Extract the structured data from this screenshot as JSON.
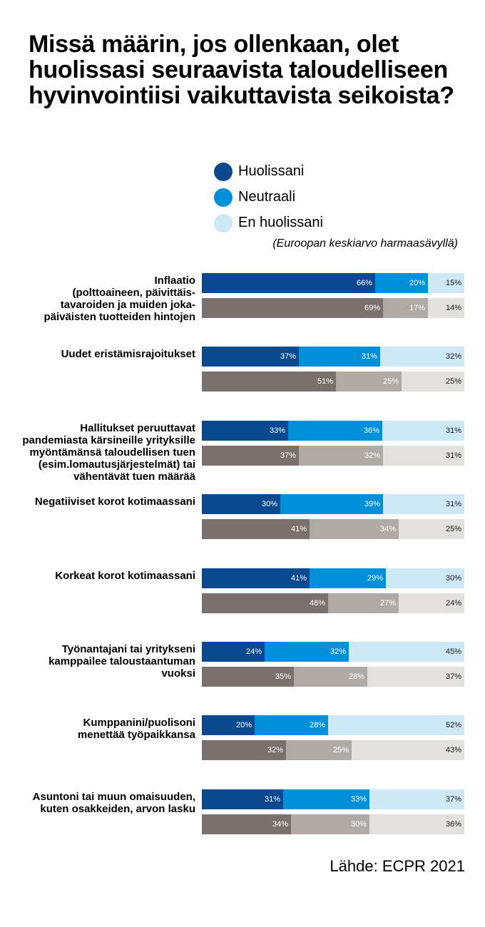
{
  "title": "Missä määrin, jos ollenkaan, olet huolissasi seuraavista taloudelliseen hyvinvointiisi vaikuttavista seikoista?",
  "legend": {
    "items": [
      {
        "label": "Huolissani",
        "color": "#08498f"
      },
      {
        "label": "Neutraali",
        "color": "#0090d9"
      },
      {
        "label": "En huolissani",
        "color": "#cfe8f8"
      }
    ],
    "note": "(Euroopan keskiarvo harmaasävyllä)"
  },
  "source": "Lähde: ECPR 2021",
  "chart_data": {
    "type": "bar",
    "orientation": "horizontal",
    "stacked": true,
    "title": "Missä määrin, jos ollenkaan, olet huolissasi seuraavista taloudelliseen hyvinvointiisi vaikuttavista seikoista?",
    "segments": [
      "Huolissani",
      "Neutraali",
      "En huolissani"
    ],
    "colors": {
      "country": [
        "#08498f",
        "#0090d9",
        "#cfe8f8"
      ],
      "europe": [
        "#7a716e",
        "#b0aaa6",
        "#e3e1de"
      ]
    },
    "segment_label_colors": {
      "country": [
        "#ffffff",
        "#ffffff",
        "#1a1a1a"
      ],
      "europe": [
        "#ffffff",
        "#ffffff",
        "#1a1a1a"
      ]
    },
    "categories": [
      "Inflaatio\n(polttoaineen, päivittäis-\ntavaroiden ja muiden joka-\npäiväisten tuotteiden hintojen",
      "Uudet eristämisrajoitukset",
      "Hallitukset peruuttavat\npandemiasta kärsineille yrityksille\nmyöntämänsä taloudellisen tuen\n(esim.lomautusjärjestelmät) tai\nvähentävät tuen määrää",
      "Negatiiviset korot kotimaassani",
      "Korkeat korot kotimaassani",
      "Työnantajani tai yritykseni\nkamppailee taloustaantuman\nvuoksi",
      "Kumppanini/puolisoni\nmenettää työpaikkansa",
      "Asuntoni tai muun omaisuuden,\nkuten osakkeiden, arvon lasku"
    ],
    "series": [
      {
        "name": "Huolissani",
        "country": [
          66,
          37,
          33,
          30,
          41,
          24,
          20,
          31
        ],
        "europe": [
          69,
          51,
          37,
          41,
          48,
          35,
          32,
          34
        ]
      },
      {
        "name": "Neutraali",
        "country": [
          20,
          31,
          36,
          39,
          29,
          32,
          28,
          33
        ],
        "europe": [
          17,
          25,
          32,
          34,
          27,
          28,
          25,
          30
        ]
      },
      {
        "name": "En huolissani",
        "country": [
          15,
          32,
          31,
          31,
          30,
          45,
          52,
          37
        ],
        "europe": [
          14,
          25,
          31,
          25,
          24,
          37,
          43,
          36
        ]
      }
    ],
    "value_suffix": "%",
    "xlim": [
      0,
      100
    ]
  }
}
